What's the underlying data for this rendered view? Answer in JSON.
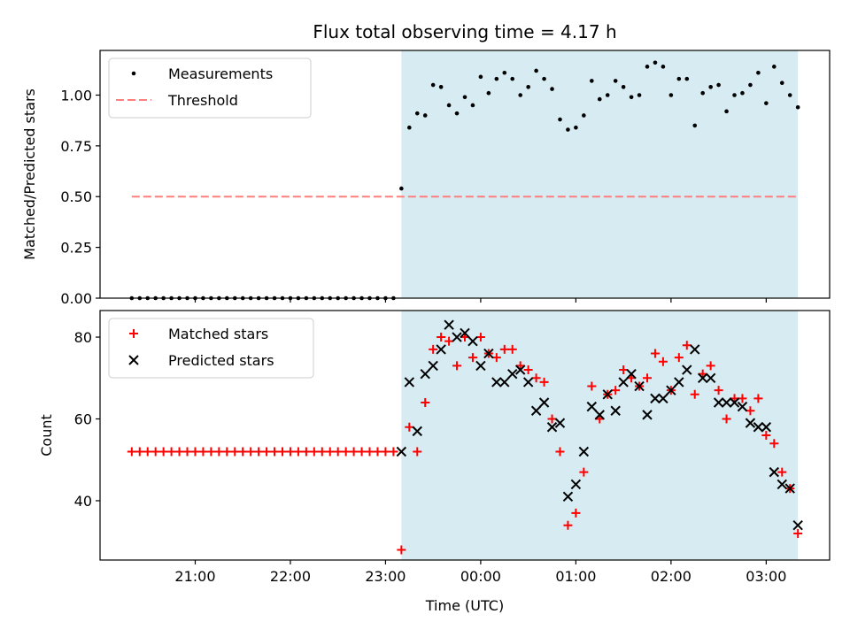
{
  "title": "Flux total observing time = 4.17 h",
  "colors": {
    "shade": "#add8e6",
    "threshold": "#ff7f7f",
    "measurement": "#000000",
    "matched": "#ff0000",
    "predicted": "#000000"
  },
  "chart_data": [
    {
      "type": "scatter",
      "panel": "top",
      "xlabel": "",
      "ylabel": "Matched/Predicted stars",
      "xlim": [
        20.0,
        27.6667
      ],
      "ylim": [
        0.0,
        1.22
      ],
      "yticks": [
        0.0,
        0.25,
        0.5,
        0.75,
        1.0
      ],
      "ytick_labels": [
        "0.00",
        "0.25",
        "0.50",
        "0.75",
        "1.00"
      ],
      "shaded_region": {
        "x": [
          23.1667,
          27.3333
        ]
      },
      "legend": {
        "position": "upper-left",
        "entries": [
          "Measurements",
          "Threshold"
        ]
      },
      "threshold": {
        "name": "Threshold",
        "y": 0.5,
        "x": [
          20.3333,
          27.3333
        ]
      },
      "series": [
        {
          "name": "Measurements",
          "x": [
            20.3333,
            20.4167,
            20.5,
            20.5833,
            20.6667,
            20.75,
            20.8333,
            20.9167,
            21.0,
            21.0833,
            21.1667,
            21.25,
            21.3333,
            21.4167,
            21.5,
            21.5833,
            21.6667,
            21.75,
            21.8333,
            21.9167,
            22.0,
            22.0833,
            22.1667,
            22.25,
            22.3333,
            22.4167,
            22.5,
            22.5833,
            22.6667,
            22.75,
            22.8333,
            22.9167,
            23.0,
            23.0833,
            23.1667,
            23.25,
            23.3333,
            23.4167,
            23.5,
            23.5833,
            23.6667,
            23.75,
            23.8333,
            23.9167,
            24.0,
            24.0833,
            24.1667,
            24.25,
            24.3333,
            24.4167,
            24.5,
            24.5833,
            24.6667,
            24.75,
            24.8333,
            24.9167,
            25.0,
            25.0833,
            25.1667,
            25.25,
            25.3333,
            25.4167,
            25.5,
            25.5833,
            25.6667,
            25.75,
            25.8333,
            25.9167,
            26.0,
            26.0833,
            26.1667,
            26.25,
            26.3333,
            26.4167,
            26.5,
            26.5833,
            26.6667,
            26.75,
            26.8333,
            26.9167,
            27.0,
            27.0833,
            27.1667,
            27.25,
            27.3333
          ],
          "y": [
            0.0,
            0.0,
            0.0,
            0.0,
            0.0,
            0.0,
            0.0,
            0.0,
            0.0,
            0.0,
            0.0,
            0.0,
            0.0,
            0.0,
            0.0,
            0.0,
            0.0,
            0.0,
            0.0,
            0.0,
            0.0,
            0.0,
            0.0,
            0.0,
            0.0,
            0.0,
            0.0,
            0.0,
            0.0,
            0.0,
            0.0,
            0.0,
            0.0,
            0.0,
            0.54,
            0.84,
            0.91,
            0.9,
            1.05,
            1.04,
            0.95,
            0.91,
            0.99,
            0.95,
            1.09,
            1.01,
            1.08,
            1.11,
            1.08,
            1.0,
            1.04,
            1.12,
            1.08,
            1.03,
            0.88,
            0.83,
            0.84,
            0.9,
            1.07,
            0.98,
            1.0,
            1.07,
            1.04,
            0.99,
            1.0,
            1.14,
            1.16,
            1.14,
            1.0,
            1.08,
            1.08,
            0.85,
            1.01,
            1.04,
            1.05,
            0.92,
            1.0,
            1.01,
            1.05,
            1.11,
            0.96,
            1.14,
            1.06,
            1.0,
            0.94
          ]
        }
      ]
    },
    {
      "type": "scatter",
      "panel": "bottom",
      "xlabel": "Time (UTC)",
      "ylabel": "Count",
      "xlim": [
        20.0,
        27.6667
      ],
      "ylim": [
        25.5,
        86.5
      ],
      "yticks": [
        40,
        60,
        80
      ],
      "ytick_labels": [
        "40",
        "60",
        "80"
      ],
      "xticks": [
        21,
        22,
        23,
        24,
        25,
        26,
        27
      ],
      "xtick_labels": [
        "21:00",
        "22:00",
        "23:00",
        "00:00",
        "01:00",
        "02:00",
        "03:00"
      ],
      "shaded_region": {
        "x": [
          23.1667,
          27.3333
        ]
      },
      "legend": {
        "position": "upper-left",
        "entries": [
          "Matched stars",
          "Predicted stars"
        ]
      },
      "series": [
        {
          "name": "Matched stars",
          "marker": "plus",
          "x": [
            20.3333,
            20.4167,
            20.5,
            20.5833,
            20.6667,
            20.75,
            20.8333,
            20.9167,
            21.0,
            21.0833,
            21.1667,
            21.25,
            21.3333,
            21.4167,
            21.5,
            21.5833,
            21.6667,
            21.75,
            21.8333,
            21.9167,
            22.0,
            22.0833,
            22.1667,
            22.25,
            22.3333,
            22.4167,
            22.5,
            22.5833,
            22.6667,
            22.75,
            22.8333,
            22.9167,
            23.0,
            23.0833,
            23.1667,
            23.25,
            23.3333,
            23.4167,
            23.5,
            23.5833,
            23.6667,
            23.75,
            23.8333,
            23.9167,
            24.0,
            24.0833,
            24.1667,
            24.25,
            24.3333,
            24.4167,
            24.5,
            24.5833,
            24.6667,
            24.75,
            24.8333,
            24.9167,
            25.0,
            25.0833,
            25.1667,
            25.25,
            25.3333,
            25.4167,
            25.5,
            25.5833,
            25.6667,
            25.75,
            25.8333,
            25.9167,
            26.0,
            26.0833,
            26.1667,
            26.25,
            26.3333,
            26.4167,
            26.5,
            26.5833,
            26.6667,
            26.75,
            26.8333,
            26.9167,
            27.0,
            27.0833,
            27.1667,
            27.25,
            27.3333
          ],
          "y": [
            52,
            52,
            52,
            52,
            52,
            52,
            52,
            52,
            52,
            52,
            52,
            52,
            52,
            52,
            52,
            52,
            52,
            52,
            52,
            52,
            52,
            52,
            52,
            52,
            52,
            52,
            52,
            52,
            52,
            52,
            52,
            52,
            52,
            52,
            28,
            58,
            52,
            64,
            77,
            80,
            79,
            73,
            80,
            75,
            80,
            76,
            75,
            77,
            77,
            73,
            72,
            70,
            69,
            60,
            52,
            34,
            37,
            47,
            68,
            60,
            66,
            67,
            72,
            70,
            68,
            70,
            76,
            74,
            67,
            75,
            78,
            66,
            71,
            73,
            67,
            60,
            65,
            65,
            62,
            65,
            56,
            54,
            47,
            43,
            32
          ]
        },
        {
          "name": "Predicted stars",
          "marker": "x",
          "x": [
            23.1667,
            23.25,
            23.3333,
            23.4167,
            23.5,
            23.5833,
            23.6667,
            23.75,
            23.8333,
            23.9167,
            24.0,
            24.0833,
            24.1667,
            24.25,
            24.3333,
            24.4167,
            24.5,
            24.5833,
            24.6667,
            24.75,
            24.8333,
            24.9167,
            25.0,
            25.0833,
            25.1667,
            25.25,
            25.3333,
            25.4167,
            25.5,
            25.5833,
            25.6667,
            25.75,
            25.8333,
            25.9167,
            26.0,
            26.0833,
            26.1667,
            26.25,
            26.3333,
            26.4167,
            26.5,
            26.5833,
            26.6667,
            26.75,
            26.8333,
            26.9167,
            27.0,
            27.0833,
            27.1667,
            27.25,
            27.3333
          ],
          "y": [
            52,
            69,
            57,
            71,
            73,
            77,
            83,
            80,
            81,
            79,
            73,
            76,
            69,
            69,
            71,
            72,
            69,
            62,
            64,
            58,
            59,
            41,
            44,
            52,
            63,
            61,
            66,
            62,
            69,
            71,
            68,
            61,
            65,
            65,
            67,
            69,
            72,
            77,
            70,
            70,
            64,
            64,
            64,
            63,
            59,
            58,
            58,
            47,
            44,
            43,
            34
          ]
        }
      ]
    }
  ]
}
